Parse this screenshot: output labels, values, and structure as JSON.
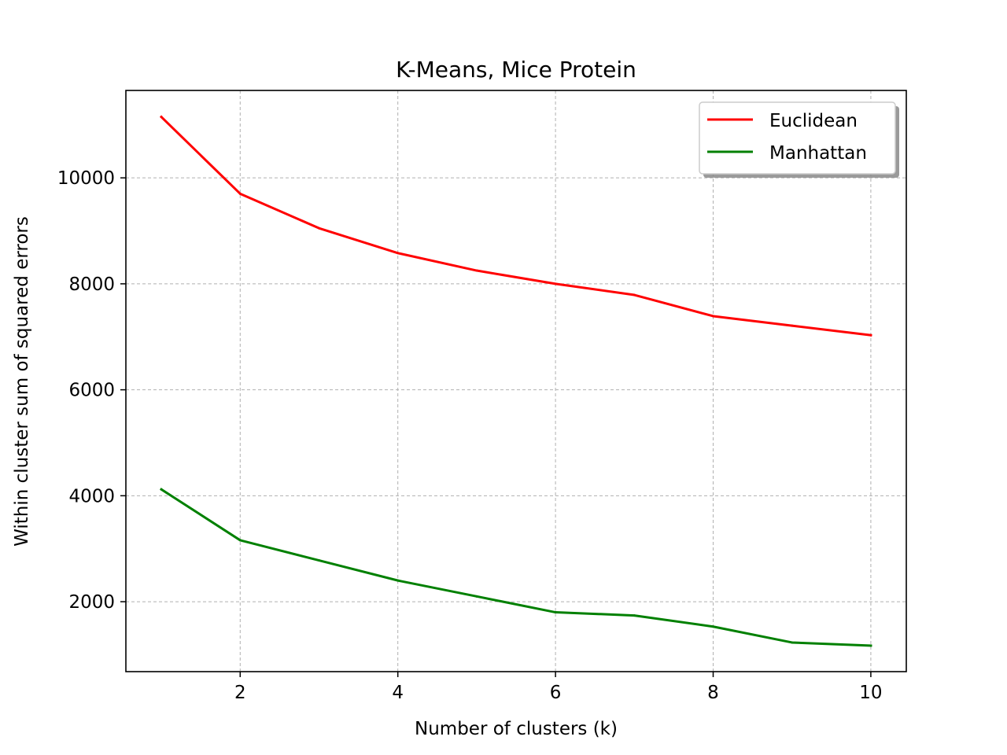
{
  "chart_data": {
    "type": "line",
    "title": "K-Means, Mice Protein",
    "xlabel": "Number of clusters (k)",
    "ylabel": "Within cluster sum of squared errors",
    "xlim": [
      0.55,
      10.45
    ],
    "ylim": [
      680,
      11650
    ],
    "x_ticks": [
      2,
      4,
      6,
      8,
      10
    ],
    "y_ticks": [
      2000,
      4000,
      6000,
      8000,
      10000
    ],
    "x_tick_labels": [
      "2",
      "4",
      "6",
      "8",
      "10"
    ],
    "y_tick_labels": [
      "2000",
      "4000",
      "6000",
      "8000",
      "10000"
    ],
    "grid": true,
    "legend_position": "top-right",
    "x": [
      1,
      2,
      3,
      4,
      5,
      6,
      7,
      8,
      9,
      10
    ],
    "series": [
      {
        "name": "Euclidean",
        "color": "#ff0000",
        "values": [
          11150,
          9700,
          9050,
          8580,
          8250,
          8000,
          7790,
          7390,
          7210,
          7030
        ]
      },
      {
        "name": "Manhattan",
        "color": "#008000",
        "values": [
          4120,
          3160,
          2780,
          2400,
          2100,
          1800,
          1740,
          1530,
          1230,
          1170
        ]
      }
    ]
  }
}
